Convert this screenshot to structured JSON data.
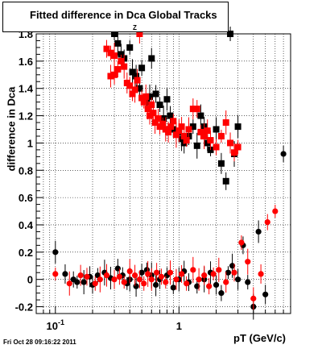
{
  "chart_data": {
    "type": "scatter",
    "title": "Fitted difference in Dca",
    "title_subscript": "Z",
    "title_suffix": "Global Tracks",
    "xlabel": "pT (GeV/c)",
    "ylabel": "difference in Dca",
    "xscale": "log",
    "xlim": [
      0.07,
      8
    ],
    "ylim": [
      -0.25,
      1.8
    ],
    "x_ticks": [
      {
        "value": 0.1,
        "label": "10",
        "sup": "-1"
      },
      {
        "value": 1,
        "label": "1",
        "sup": ""
      }
    ],
    "y_ticks": [
      -0.2,
      0,
      0.2,
      0.4,
      0.6,
      0.8,
      1,
      1.2,
      1.4,
      1.6,
      1.8
    ],
    "y_tick_labels": [
      "-0.2",
      "0",
      "0.2",
      "0.4",
      "0.6",
      "0.8",
      "1",
      "1.2",
      "1.4",
      "1.6",
      "1.8"
    ],
    "grid": true,
    "series": [
      {
        "color": "#000000",
        "marker": "square",
        "points": [
          [
            0.3,
            1.8
          ],
          [
            0.32,
            1.73
          ],
          [
            0.34,
            1.65
          ],
          [
            0.36,
            1.62
          ],
          [
            0.4,
            1.7
          ],
          [
            0.42,
            1.52
          ],
          [
            0.45,
            1.49
          ],
          [
            0.48,
            1.4
          ],
          [
            0.5,
            1.55
          ],
          [
            0.55,
            1.3
          ],
          [
            0.58,
            1.34
          ],
          [
            0.6,
            1.62
          ],
          [
            0.65,
            1.36
          ],
          [
            0.7,
            1.28
          ],
          [
            0.75,
            1.18
          ],
          [
            0.8,
            1.32
          ],
          [
            0.85,
            1.2
          ],
          [
            0.9,
            1.1
          ],
          [
            1.0,
            1.08
          ],
          [
            1.05,
            1.03
          ],
          [
            1.1,
            1.0
          ],
          [
            1.2,
            1.05
          ],
          [
            1.3,
            1.12
          ],
          [
            1.4,
            0.98
          ],
          [
            1.5,
            1.2
          ],
          [
            1.6,
            1.12
          ],
          [
            1.7,
            1.0
          ],
          [
            1.8,
            0.95
          ],
          [
            2.0,
            1.1
          ],
          [
            2.2,
            0.85
          ],
          [
            2.4,
            0.72
          ],
          [
            2.6,
            1.8
          ],
          [
            2.8,
            0.92
          ],
          [
            3.0,
            1.12
          ]
        ]
      },
      {
        "color": "#ff0000",
        "marker": "square",
        "points": [
          [
            0.26,
            1.69
          ],
          [
            0.28,
            1.66
          ],
          [
            0.3,
            1.64
          ],
          [
            0.28,
            1.49
          ],
          [
            0.3,
            1.5
          ],
          [
            0.32,
            1.54
          ],
          [
            0.34,
            1.6
          ],
          [
            0.36,
            1.56
          ],
          [
            0.38,
            1.44
          ],
          [
            0.4,
            1.42
          ],
          [
            0.42,
            1.36
          ],
          [
            0.44,
            1.39
          ],
          [
            0.46,
            1.46
          ],
          [
            0.48,
            1.8
          ],
          [
            0.5,
            1.33
          ],
          [
            0.52,
            1.3
          ],
          [
            0.54,
            1.34
          ],
          [
            0.56,
            1.25
          ],
          [
            0.58,
            1.2
          ],
          [
            0.6,
            1.28
          ],
          [
            0.62,
            1.22
          ],
          [
            0.64,
            1.15
          ],
          [
            0.68,
            1.18
          ],
          [
            0.7,
            1.12
          ],
          [
            0.74,
            1.14
          ],
          [
            0.78,
            1.1
          ],
          [
            0.82,
            1.08
          ],
          [
            0.86,
            1.12
          ],
          [
            0.9,
            1.16
          ],
          [
            0.95,
            1.06
          ],
          [
            1.0,
            1.09
          ],
          [
            1.05,
            1.12
          ],
          [
            1.1,
            1.05
          ],
          [
            1.15,
            1.02
          ],
          [
            1.2,
            1.1
          ],
          [
            1.3,
            1.25
          ],
          [
            1.4,
            1.25
          ],
          [
            1.5,
            1.08
          ],
          [
            1.6,
            1.05
          ],
          [
            1.7,
            1.09
          ],
          [
            1.8,
            1.02
          ],
          [
            2.0,
            0.97
          ],
          [
            2.2,
            1.05
          ],
          [
            2.4,
            1.15
          ],
          [
            2.6,
            1.0
          ],
          [
            2.8,
            0.93
          ],
          [
            3.0,
            0.97
          ]
        ]
      },
      {
        "color": "#000000",
        "marker": "circle",
        "points": [
          [
            0.1,
            0.2
          ],
          [
            0.12,
            0.04
          ],
          [
            0.14,
            0.0
          ],
          [
            0.15,
            -0.02
          ],
          [
            0.17,
            -0.02
          ],
          [
            0.19,
            0.02
          ],
          [
            0.2,
            -0.04
          ],
          [
            0.22,
            0.03
          ],
          [
            0.25,
            0.05
          ],
          [
            0.28,
            0.01
          ],
          [
            0.32,
            0.08
          ],
          [
            0.35,
            0.03
          ],
          [
            0.38,
            -0.03
          ],
          [
            0.4,
            0.0
          ],
          [
            0.45,
            -0.05
          ],
          [
            0.5,
            0.05
          ],
          [
            0.55,
            0.07
          ],
          [
            0.6,
            0.03
          ],
          [
            0.65,
            -0.04
          ],
          [
            0.7,
            0.0
          ],
          [
            0.8,
            0.03
          ],
          [
            0.9,
            -0.06
          ],
          [
            1.0,
            0.0
          ],
          [
            1.1,
            0.06
          ],
          [
            1.2,
            -0.02
          ],
          [
            1.4,
            -0.05
          ],
          [
            1.6,
            0.0
          ],
          [
            1.8,
            0.05
          ],
          [
            2.0,
            -0.04
          ],
          [
            2.2,
            -0.1
          ],
          [
            2.5,
            0.05
          ],
          [
            2.7,
            0.1
          ],
          [
            3.0,
            0.0
          ],
          [
            3.3,
            0.25
          ],
          [
            3.6,
            -0.02
          ],
          [
            4.0,
            -0.2
          ],
          [
            4.4,
            0.35
          ],
          [
            5.0,
            -0.11
          ],
          [
            7.0,
            0.92
          ]
        ]
      },
      {
        "color": "#ff0000",
        "marker": "circle",
        "points": [
          [
            0.1,
            0.04
          ],
          [
            0.13,
            -0.03
          ],
          [
            0.16,
            0.03
          ],
          [
            0.18,
            0.02
          ],
          [
            0.21,
            -0.03
          ],
          [
            0.23,
            0.0
          ],
          [
            0.26,
            0.03
          ],
          [
            0.3,
            0.0
          ],
          [
            0.33,
            0.02
          ],
          [
            0.36,
            -0.02
          ],
          [
            0.4,
            0.06
          ],
          [
            0.44,
            0.03
          ],
          [
            0.48,
            0.0
          ],
          [
            0.52,
            -0.03
          ],
          [
            0.56,
            0.04
          ],
          [
            0.6,
            0.0
          ],
          [
            0.66,
            0.05
          ],
          [
            0.72,
            0.02
          ],
          [
            0.78,
            -0.02
          ],
          [
            0.85,
            0.05
          ],
          [
            0.95,
            0.0
          ],
          [
            1.05,
            0.04
          ],
          [
            1.15,
            -0.03
          ],
          [
            1.3,
            0.07
          ],
          [
            1.45,
            0.0
          ],
          [
            1.6,
            0.03
          ],
          [
            1.75,
            -0.05
          ],
          [
            1.9,
            0.04
          ],
          [
            2.1,
            0.07
          ],
          [
            2.4,
            -0.02
          ],
          [
            2.8,
            0.05
          ],
          [
            3.2,
            0.27
          ],
          [
            3.6,
            0.13
          ],
          [
            4.0,
            -0.14
          ],
          [
            4.6,
            0.04
          ],
          [
            5.2,
            0.42
          ],
          [
            6.0,
            0.5
          ]
        ]
      }
    ]
  },
  "footer": {
    "timestamp": "Fri Oct 28 09:16:22 2011"
  }
}
